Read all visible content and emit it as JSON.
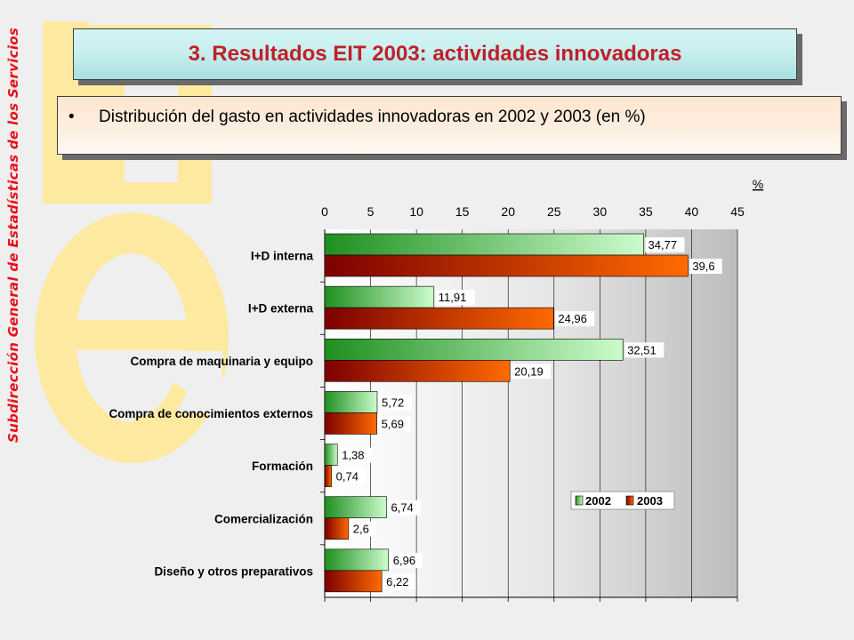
{
  "sidebar": {
    "vertical_text": "Subdirección General de Estadísticas de los Servicios"
  },
  "slide": {
    "title": "3. Resultados EIT 2003: actividades innovadoras",
    "bullet_text": "Distribución del gasto en actividades innovadoras en 2002  y 2003 (en %)"
  },
  "colors": {
    "title": "#c0202a",
    "sidebar_text": "#e8101a",
    "series_2002_dark": "#1f8f1f",
    "series_2002_light": "#ccfccc",
    "series_2003_dark": "#7d0000",
    "series_2003_light": "#ff6a00"
  },
  "chart_data": {
    "type": "bar",
    "orientation": "horizontal",
    "unit_label": "%",
    "categories": [
      "I+D interna",
      "I+D externa",
      "Compra de maquinaria y equipo",
      "Compra de conocimientos externos",
      "Formación",
      "Comercialización",
      "Diseño y otros preparativos"
    ],
    "series": [
      {
        "name": "2002",
        "values": [
          34.77,
          11.91,
          32.51,
          5.72,
          1.38,
          6.74,
          6.96
        ],
        "labels": [
          "34,77",
          "11,91",
          "32,51",
          "5,72",
          "1,38",
          "6,74",
          "6,96"
        ]
      },
      {
        "name": "2003",
        "values": [
          39.6,
          24.96,
          20.19,
          5.69,
          0.74,
          2.6,
          6.22
        ],
        "labels": [
          "39,6",
          "24,96",
          "20,19",
          "5,69",
          "0,74",
          "2,6",
          "6,22"
        ]
      }
    ],
    "x_ticks": [
      0,
      5,
      10,
      15,
      20,
      25,
      30,
      35,
      40,
      45
    ],
    "xlim": [
      0,
      45
    ],
    "x_axis_position": "top",
    "grid": true,
    "legend_position": "bottom-right"
  }
}
